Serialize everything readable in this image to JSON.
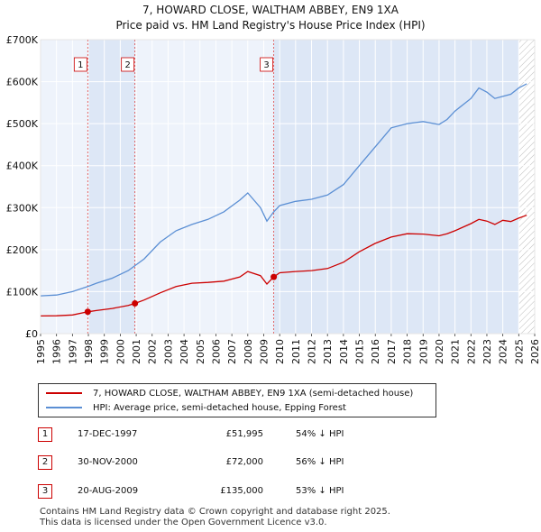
{
  "header": {
    "title": "7, HOWARD CLOSE, WALTHAM ABBEY, EN9 1XA",
    "subtitle": "Price paid vs. HM Land Registry's House Price Index (HPI)"
  },
  "colors": {
    "red": "#cc0000",
    "blue": "#5b8fd4",
    "shade": "#dde7f6",
    "grid": "#ffffff"
  },
  "chart_data": {
    "type": "line",
    "title": "Price paid vs. HM Land Registry's House Price Index (HPI)",
    "xlabel": "",
    "ylabel": "",
    "xlim": [
      1995,
      2026
    ],
    "ylim": [
      0,
      700000
    ],
    "yticks": [
      {
        "value": 0,
        "label": "£0"
      },
      {
        "value": 100000,
        "label": "£100K"
      },
      {
        "value": 200000,
        "label": "£200K"
      },
      {
        "value": 300000,
        "label": "£300K"
      },
      {
        "value": 400000,
        "label": "£400K"
      },
      {
        "value": 500000,
        "label": "£500K"
      },
      {
        "value": 600000,
        "label": "£600K"
      },
      {
        "value": 700000,
        "label": "£700K"
      }
    ],
    "xticks": [
      "1995",
      "1996",
      "1997",
      "1998",
      "1999",
      "2000",
      "2001",
      "2002",
      "2003",
      "2004",
      "2005",
      "2006",
      "2007",
      "2008",
      "2009",
      "2010",
      "2011",
      "2012",
      "2013",
      "2014",
      "2015",
      "2016",
      "2017",
      "2018",
      "2019",
      "2020",
      "2021",
      "2022",
      "2023",
      "2024",
      "2025",
      "2026"
    ],
    "shaded_ranges": [
      [
        1997.96,
        2000.92
      ],
      [
        2009.63,
        2025.0
      ]
    ],
    "projection_start": 2025.0,
    "series": [
      {
        "name": "7, HOWARD CLOSE, WALTHAM ABBEY, EN9 1XA (semi-detached house)",
        "color": "#cc0000",
        "x": [
          1995.0,
          1996.0,
          1997.0,
          1997.96,
          1998.5,
          1999.5,
          2000.5,
          2000.92,
          2001.5,
          2002.5,
          2003.5,
          2004.5,
          2005.5,
          2006.5,
          2007.5,
          2008.0,
          2008.8,
          2009.2,
          2009.63,
          2010.0,
          2011.0,
          2012.0,
          2013.0,
          2014.0,
          2015.0,
          2016.0,
          2017.0,
          2018.0,
          2019.0,
          2020.0,
          2020.5,
          2021.0,
          2022.0,
          2022.5,
          2023.0,
          2023.5,
          2024.0,
          2024.5,
          2025.0,
          2025.5
        ],
        "y": [
          42000,
          42500,
          44500,
          51995,
          55000,
          60000,
          67000,
          72000,
          80000,
          97000,
          112000,
          120000,
          122000,
          125000,
          135000,
          148000,
          138000,
          118000,
          135000,
          145000,
          148000,
          150000,
          155000,
          170000,
          195000,
          215000,
          230000,
          238000,
          237000,
          233000,
          238000,
          245000,
          262000,
          272000,
          268000,
          260000,
          270000,
          267000,
          275000,
          282000
        ]
      },
      {
        "name": "HPI: Average price, semi-detached house, Epping Forest",
        "color": "#5b8fd4",
        "x": [
          1995.0,
          1996.0,
          1997.0,
          1997.96,
          1998.5,
          1999.5,
          2000.5,
          2000.92,
          2001.5,
          2002.5,
          2003.5,
          2004.5,
          2005.5,
          2006.5,
          2007.5,
          2008.0,
          2008.8,
          2009.2,
          2009.63,
          2010.0,
          2011.0,
          2012.0,
          2013.0,
          2014.0,
          2015.0,
          2016.0,
          2017.0,
          2018.0,
          2019.0,
          2020.0,
          2020.5,
          2021.0,
          2022.0,
          2022.5,
          2023.0,
          2023.5,
          2024.0,
          2024.5,
          2025.0,
          2025.5
        ],
        "y": [
          90000,
          92000,
          100000,
          112000,
          120000,
          132000,
          150000,
          162000,
          178000,
          218000,
          245000,
          260000,
          272000,
          290000,
          318000,
          335000,
          300000,
          268000,
          290000,
          305000,
          315000,
          320000,
          330000,
          355000,
          400000,
          445000,
          490000,
          500000,
          505000,
          498000,
          510000,
          530000,
          560000,
          585000,
          575000,
          560000,
          565000,
          570000,
          585000,
          595000
        ]
      }
    ],
    "sales_markers": [
      {
        "label": "1",
        "x": 1997.96,
        "y": 51995
      },
      {
        "label": "2",
        "x": 2000.92,
        "y": 72000
      },
      {
        "label": "3",
        "x": 2009.63,
        "y": 135000
      }
    ]
  },
  "legend": {
    "property_label": "7, HOWARD CLOSE, WALTHAM ABBEY, EN9 1XA (semi-detached house)",
    "hpi_label": "HPI: Average price, semi-detached house, Epping Forest"
  },
  "sales": [
    {
      "num": "1",
      "date": "17-DEC-1997",
      "price": "£51,995",
      "hpi": "54% ↓ HPI"
    },
    {
      "num": "2",
      "date": "30-NOV-2000",
      "price": "£72,000",
      "hpi": "56% ↓ HPI"
    },
    {
      "num": "3",
      "date": "20-AUG-2009",
      "price": "£135,000",
      "hpi": "53% ↓ HPI"
    }
  ],
  "footer": {
    "line1": "Contains HM Land Registry data © Crown copyright and database right 2025.",
    "line2": "This data is licensed under the Open Government Licence v3.0."
  }
}
